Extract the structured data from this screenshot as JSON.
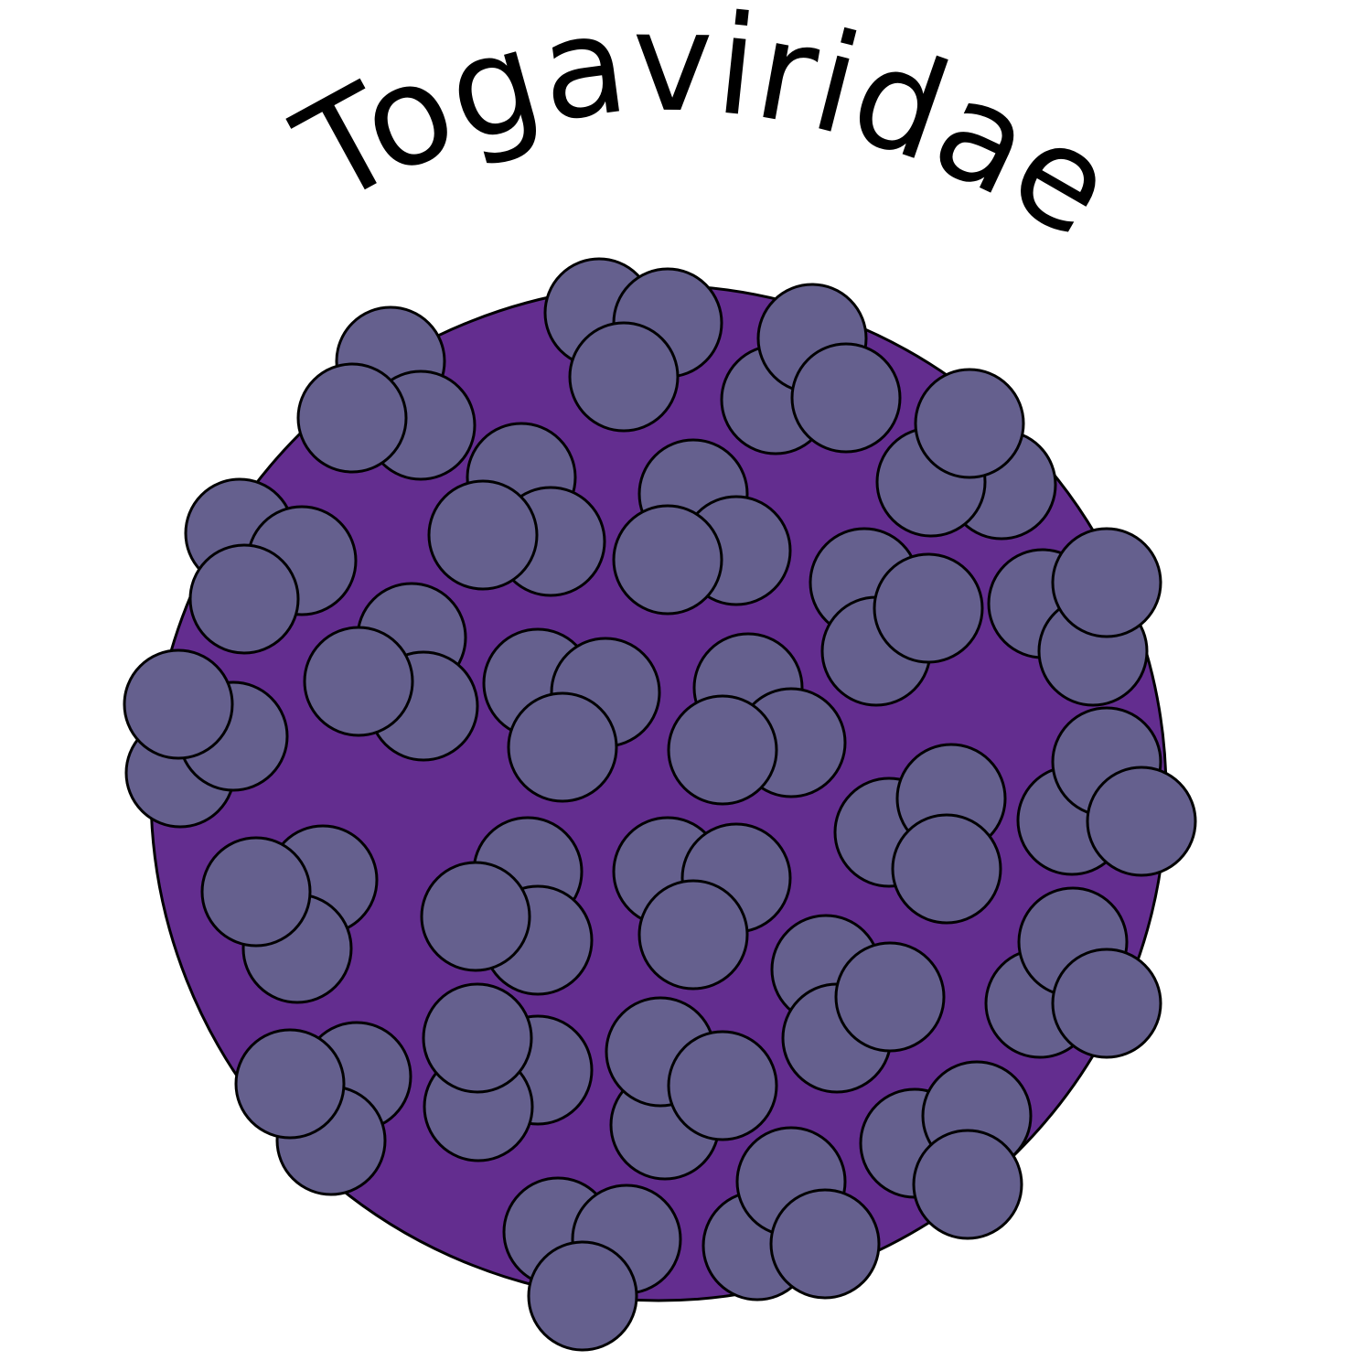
{
  "title": "Togaviridae",
  "colors": {
    "background": "#ffffff",
    "envelope_fill": "#632d8f",
    "spike_fill": "#65608e",
    "outline": "#000000",
    "title_text": "#000000"
  }
}
